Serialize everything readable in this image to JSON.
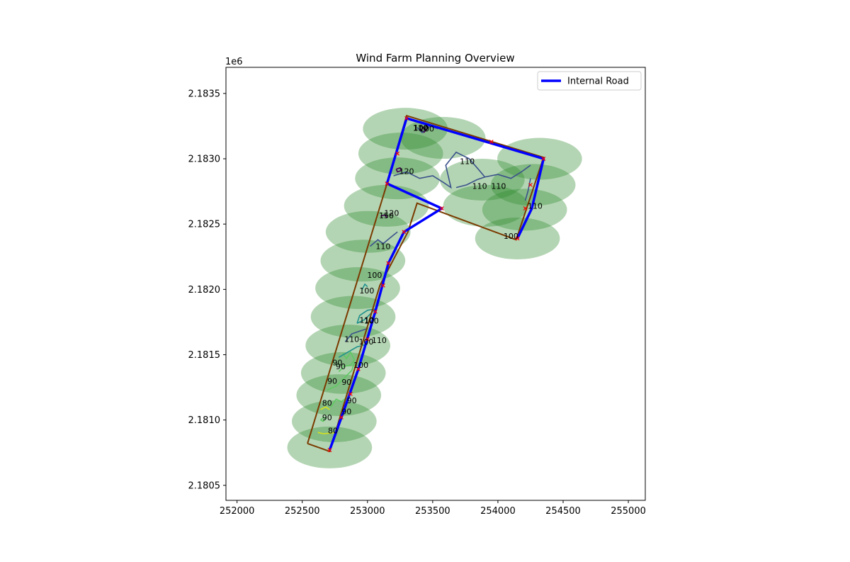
{
  "chart_data": {
    "type": "line",
    "title": "Wind Farm Planning Overview",
    "xlabel": "",
    "ylabel": "",
    "y_offset_label": "1e6",
    "xlim": [
      251915,
      255130
    ],
    "ylim": [
      2180385,
      2183700
    ],
    "x_ticks": [
      252000,
      252500,
      253000,
      253500,
      254000,
      254500,
      255000
    ],
    "y_ticks": [
      2180500,
      2181000,
      2181500,
      2182000,
      2182500,
      2183000,
      2183500
    ],
    "y_tick_labels": [
      "2.1805",
      "2.1810",
      "2.1815",
      "2.1820",
      "2.1825",
      "2.1830",
      "2.1835"
    ],
    "grid": false,
    "legend_position": "upper-right",
    "legend": [
      {
        "label": "Internal Road",
        "color": "#0000ff"
      }
    ],
    "colors": {
      "road": "#0000ff",
      "boundary": "#7a3a00",
      "turbine_marker": "#ff0000",
      "wake_ellipse": "#2e8b2e",
      "contour_80": "#d8e21a",
      "contour_90": "#5ec962",
      "contour_100": "#21918c",
      "contour_110": "#3b528b",
      "contour_120": "#440154"
    },
    "wake_ellipses": [
      {
        "cx": 252710,
        "cy": 2180790,
        "w": 650,
        "h": 320
      },
      {
        "cx": 252745,
        "cy": 2180990,
        "w": 650,
        "h": 320
      },
      {
        "cx": 252780,
        "cy": 2181190,
        "w": 650,
        "h": 320
      },
      {
        "cx": 252815,
        "cy": 2181360,
        "w": 650,
        "h": 320
      },
      {
        "cx": 252850,
        "cy": 2181570,
        "w": 650,
        "h": 320
      },
      {
        "cx": 252890,
        "cy": 2181790,
        "w": 650,
        "h": 320
      },
      {
        "cx": 252925,
        "cy": 2182010,
        "w": 650,
        "h": 320
      },
      {
        "cx": 252965,
        "cy": 2182220,
        "w": 650,
        "h": 320
      },
      {
        "cx": 253005,
        "cy": 2182440,
        "w": 650,
        "h": 320
      },
      {
        "cx": 253145,
        "cy": 2182640,
        "w": 650,
        "h": 320
      },
      {
        "cx": 253255,
        "cy": 2183040,
        "w": 650,
        "h": 320
      },
      {
        "cx": 253290,
        "cy": 2183230,
        "w": 650,
        "h": 320
      },
      {
        "cx": 253230,
        "cy": 2182850,
        "w": 650,
        "h": 320
      },
      {
        "cx": 253580,
        "cy": 2183160,
        "w": 650,
        "h": 320
      },
      {
        "cx": 253880,
        "cy": 2182840,
        "w": 650,
        "h": 320
      },
      {
        "cx": 253905,
        "cy": 2182640,
        "w": 650,
        "h": 320
      },
      {
        "cx": 254150,
        "cy": 2182390,
        "w": 650,
        "h": 320
      },
      {
        "cx": 254205,
        "cy": 2182610,
        "w": 650,
        "h": 320
      },
      {
        "cx": 254270,
        "cy": 2182800,
        "w": 650,
        "h": 320
      },
      {
        "cx": 254320,
        "cy": 2183000,
        "w": 650,
        "h": 320
      }
    ],
    "boundary": [
      [
        252540,
        2180820
      ],
      [
        252710,
        2180760
      ],
      [
        253095,
        2182030
      ],
      [
        253310,
        2182440
      ],
      [
        253380,
        2182660
      ],
      [
        254140,
        2182380
      ],
      [
        254350,
        2183010
      ],
      [
        253300,
        2183330
      ],
      [
        253150,
        2182810
      ],
      [
        252540,
        2180820
      ]
    ],
    "road": [
      [
        252710,
        2180770
      ],
      [
        252800,
        2181020
      ],
      [
        252930,
        2181390
      ],
      [
        253060,
        2181830
      ],
      [
        253160,
        2182200
      ],
      [
        253280,
        2182440
      ],
      [
        253570,
        2182620
      ],
      [
        253150,
        2182810
      ],
      [
        253300,
        2183310
      ],
      [
        254350,
        2183000
      ],
      [
        254260,
        2182620
      ],
      [
        254150,
        2182390
      ]
    ],
    "turbines": [
      [
        252710,
        2180770
      ],
      [
        252800,
        2181020
      ],
      [
        252870,
        2181200
      ],
      [
        252930,
        2181390
      ],
      [
        253000,
        2181620
      ],
      [
        253060,
        2181830
      ],
      [
        253120,
        2182030
      ],
      [
        253160,
        2182200
      ],
      [
        253280,
        2182440
      ],
      [
        253570,
        2182620
      ],
      [
        253150,
        2182810
      ],
      [
        253230,
        2183040
      ],
      [
        253300,
        2183310
      ],
      [
        253950,
        2183130
      ],
      [
        254350,
        2183000
      ],
      [
        254250,
        2182800
      ],
      [
        254210,
        2182620
      ],
      [
        254150,
        2182390
      ]
    ],
    "contours": [
      {
        "level": 80,
        "points": [
          [
            252620,
            2180905
          ],
          [
            252660,
            2180895
          ],
          [
            252720,
            2180900
          ],
          [
            252760,
            2180905
          ]
        ]
      },
      {
        "level": 80,
        "points": [
          [
            252640,
            2181080
          ],
          [
            252680,
            2181100
          ],
          [
            252710,
            2181080
          ]
        ]
      },
      {
        "level": 90,
        "points": [
          [
            252640,
            2181000
          ],
          [
            252665,
            2181020
          ],
          [
            252680,
            2181010
          ],
          [
            252660,
            2180990
          ],
          [
            252640,
            2181000
          ]
        ]
      },
      {
        "level": 90,
        "points": [
          [
            252690,
            2181230
          ],
          [
            252760,
            2181260
          ],
          [
            252820,
            2181320
          ],
          [
            252880,
            2181380
          ],
          [
            252900,
            2181440
          ]
        ]
      },
      {
        "level": 90,
        "points": [
          [
            252780,
            2181370
          ],
          [
            252820,
            2181410
          ],
          [
            252870,
            2181420
          ],
          [
            252900,
            2181460
          ],
          [
            252870,
            2181520
          ],
          [
            252840,
            2181470
          ],
          [
            252810,
            2181510
          ]
        ]
      },
      {
        "level": 90,
        "points": [
          [
            252720,
            2181100
          ],
          [
            252760,
            2181160
          ],
          [
            252800,
            2181140
          ],
          [
            252840,
            2181170
          ]
        ]
      },
      {
        "level": 100,
        "points": [
          [
            252920,
            2181740
          ],
          [
            252940,
            2181800
          ],
          [
            253000,
            2181840
          ],
          [
            253060,
            2181850
          ],
          [
            252980,
            2181770
          ],
          [
            252920,
            2181740
          ]
        ]
      },
      {
        "level": 100,
        "points": [
          [
            252960,
            2182000
          ],
          [
            252980,
            2182040
          ],
          [
            253000,
            2182020
          ]
        ]
      },
      {
        "level": 100,
        "points": [
          [
            252780,
            2181480
          ],
          [
            252850,
            2181520
          ],
          [
            252920,
            2181560
          ],
          [
            253000,
            2181580
          ]
        ]
      },
      {
        "level": 110,
        "points": [
          [
            252830,
            2181600
          ],
          [
            252880,
            2181660
          ],
          [
            252940,
            2181680
          ],
          [
            253000,
            2181700
          ]
        ]
      },
      {
        "level": 110,
        "points": [
          [
            253020,
            2182330
          ],
          [
            253080,
            2182380
          ],
          [
            253120,
            2182350
          ],
          [
            253180,
            2182400
          ],
          [
            253230,
            2182440
          ]
        ]
      },
      {
        "level": 110,
        "points": [
          [
            253380,
            2183240
          ],
          [
            253420,
            2183200
          ],
          [
            253480,
            2183250
          ],
          [
            253540,
            2183230
          ]
        ]
      },
      {
        "level": 110,
        "points": [
          [
            253200,
            2182870
          ],
          [
            253300,
            2182900
          ],
          [
            253400,
            2182850
          ],
          [
            253500,
            2182870
          ],
          [
            253580,
            2182820
          ],
          [
            253640,
            2182780
          ],
          [
            253600,
            2182950
          ],
          [
            253680,
            2183050
          ],
          [
            253780,
            2183000
          ],
          [
            253850,
            2182920
          ],
          [
            253900,
            2182860
          ],
          [
            254000,
            2182880
          ],
          [
            254100,
            2182850
          ],
          [
            254180,
            2182900
          ],
          [
            254250,
            2182950
          ]
        ]
      },
      {
        "level": 110,
        "points": [
          [
            253680,
            2182780
          ],
          [
            253760,
            2182800
          ],
          [
            253840,
            2182840
          ],
          [
            253900,
            2182860
          ]
        ]
      },
      {
        "level": 110,
        "points": [
          [
            254250,
            2182850
          ],
          [
            254230,
            2182750
          ],
          [
            254210,
            2182680
          ]
        ]
      },
      {
        "level": 120,
        "points": [
          [
            253220,
            2182920
          ],
          [
            253250,
            2182930
          ],
          [
            253260,
            2182910
          ],
          [
            253230,
            2182900
          ],
          [
            253220,
            2182920
          ]
        ]
      },
      {
        "level": 120,
        "points": [
          [
            253100,
            2182560
          ],
          [
            253130,
            2182570
          ],
          [
            253150,
            2182550
          ]
        ]
      },
      {
        "level": 120,
        "points": [
          [
            253410,
            2183220
          ],
          [
            253430,
            2183240
          ],
          [
            253450,
            2183220
          ],
          [
            253430,
            2183200
          ]
        ]
      }
    ],
    "contour_labels": [
      {
        "text": "100",
        "x": 253410,
        "y": 2183240
      },
      {
        "text": "100",
        "x": 253455,
        "y": 2183230
      },
      {
        "text": "110",
        "x": 253405,
        "y": 2183235
      },
      {
        "text": "110",
        "x": 253765,
        "y": 2182980
      },
      {
        "text": "120",
        "x": 253300,
        "y": 2182905
      },
      {
        "text": "110",
        "x": 253860,
        "y": 2182790
      },
      {
        "text": "110",
        "x": 254005,
        "y": 2182790
      },
      {
        "text": "110",
        "x": 254285,
        "y": 2182640
      },
      {
        "text": "120",
        "x": 253185,
        "y": 2182585
      },
      {
        "text": "150",
        "x": 253145,
        "y": 2182565
      },
      {
        "text": "100",
        "x": 254100,
        "y": 2182410
      },
      {
        "text": "110",
        "x": 253120,
        "y": 2182330
      },
      {
        "text": "100",
        "x": 253055,
        "y": 2182110
      },
      {
        "text": "100",
        "x": 252995,
        "y": 2181990
      },
      {
        "text": "110",
        "x": 252995,
        "y": 2181765
      },
      {
        "text": "100",
        "x": 253030,
        "y": 2181760
      },
      {
        "text": "110",
        "x": 252880,
        "y": 2181620
      },
      {
        "text": "100",
        "x": 252990,
        "y": 2181600
      },
      {
        "text": "110",
        "x": 253090,
        "y": 2181610
      },
      {
        "text": "90",
        "x": 252770,
        "y": 2181440
      },
      {
        "text": "90",
        "x": 252795,
        "y": 2181410
      },
      {
        "text": "100",
        "x": 252950,
        "y": 2181420
      },
      {
        "text": "90",
        "x": 252730,
        "y": 2181300
      },
      {
        "text": "90",
        "x": 252840,
        "y": 2181290
      },
      {
        "text": "90",
        "x": 252880,
        "y": 2181150
      },
      {
        "text": "80",
        "x": 252690,
        "y": 2181130
      },
      {
        "text": "90",
        "x": 252840,
        "y": 2181065
      },
      {
        "text": "90",
        "x": 252690,
        "y": 2181020
      },
      {
        "text": "80",
        "x": 252735,
        "y": 2180920
      }
    ]
  }
}
